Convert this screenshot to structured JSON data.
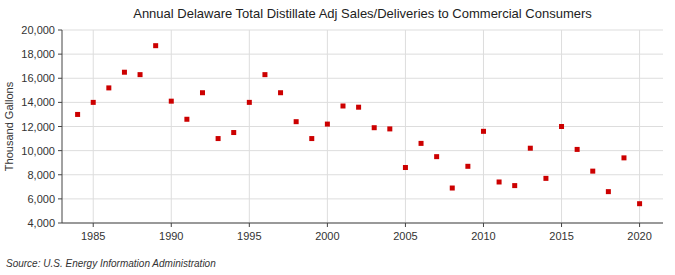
{
  "chart_data": {
    "type": "scatter",
    "title": "Annual Delaware Total Distillate Adj Sales/Deliveries to Commercial Consumers",
    "y_label": "Thousand Gallons",
    "annotations": [
      "Source: U.S. Energy Information Administration"
    ],
    "color": "#cc0000",
    "marker": "square",
    "grid": true,
    "x": [
      1984,
      1985,
      1986,
      1987,
      1988,
      1989,
      1990,
      1991,
      1992,
      1993,
      1994,
      1995,
      1996,
      1997,
      1998,
      1999,
      2000,
      2001,
      2002,
      2003,
      2004,
      2005,
      2006,
      2007,
      2008,
      2009,
      2010,
      2011,
      2012,
      2013,
      2014,
      2015,
      2016,
      2017,
      2018,
      2019,
      2020
    ],
    "values": [
      13000,
      14000,
      15200,
      16500,
      16300,
      18700,
      14100,
      12600,
      14800,
      11000,
      11500,
      14000,
      16300,
      14800,
      12400,
      11000,
      12200,
      13700,
      13600,
      11900,
      11800,
      8600,
      10600,
      9500,
      6900,
      8700,
      11600,
      7400,
      7100,
      10200,
      7700,
      12000,
      10100,
      8300,
      6600,
      9400,
      5600
    ],
    "xlim": [
      1983.0,
      2021.5
    ],
    "ylim": [
      4000,
      20000
    ],
    "xticks": [
      1985,
      1990,
      1995,
      2000,
      2005,
      2010,
      2015,
      2020
    ],
    "yticks": [
      {
        "value": 4000,
        "label": "4,000"
      },
      {
        "value": 6000,
        "label": "6,000"
      },
      {
        "value": 8000,
        "label": "8,000"
      },
      {
        "value": 10000,
        "label": "10,000"
      },
      {
        "value": 12000,
        "label": "12,000"
      },
      {
        "value": 14000,
        "label": "14,000"
      },
      {
        "value": 16000,
        "label": "16,000"
      },
      {
        "value": 18000,
        "label": "18,000"
      },
      {
        "value": 20000,
        "label": "20,000"
      }
    ]
  }
}
